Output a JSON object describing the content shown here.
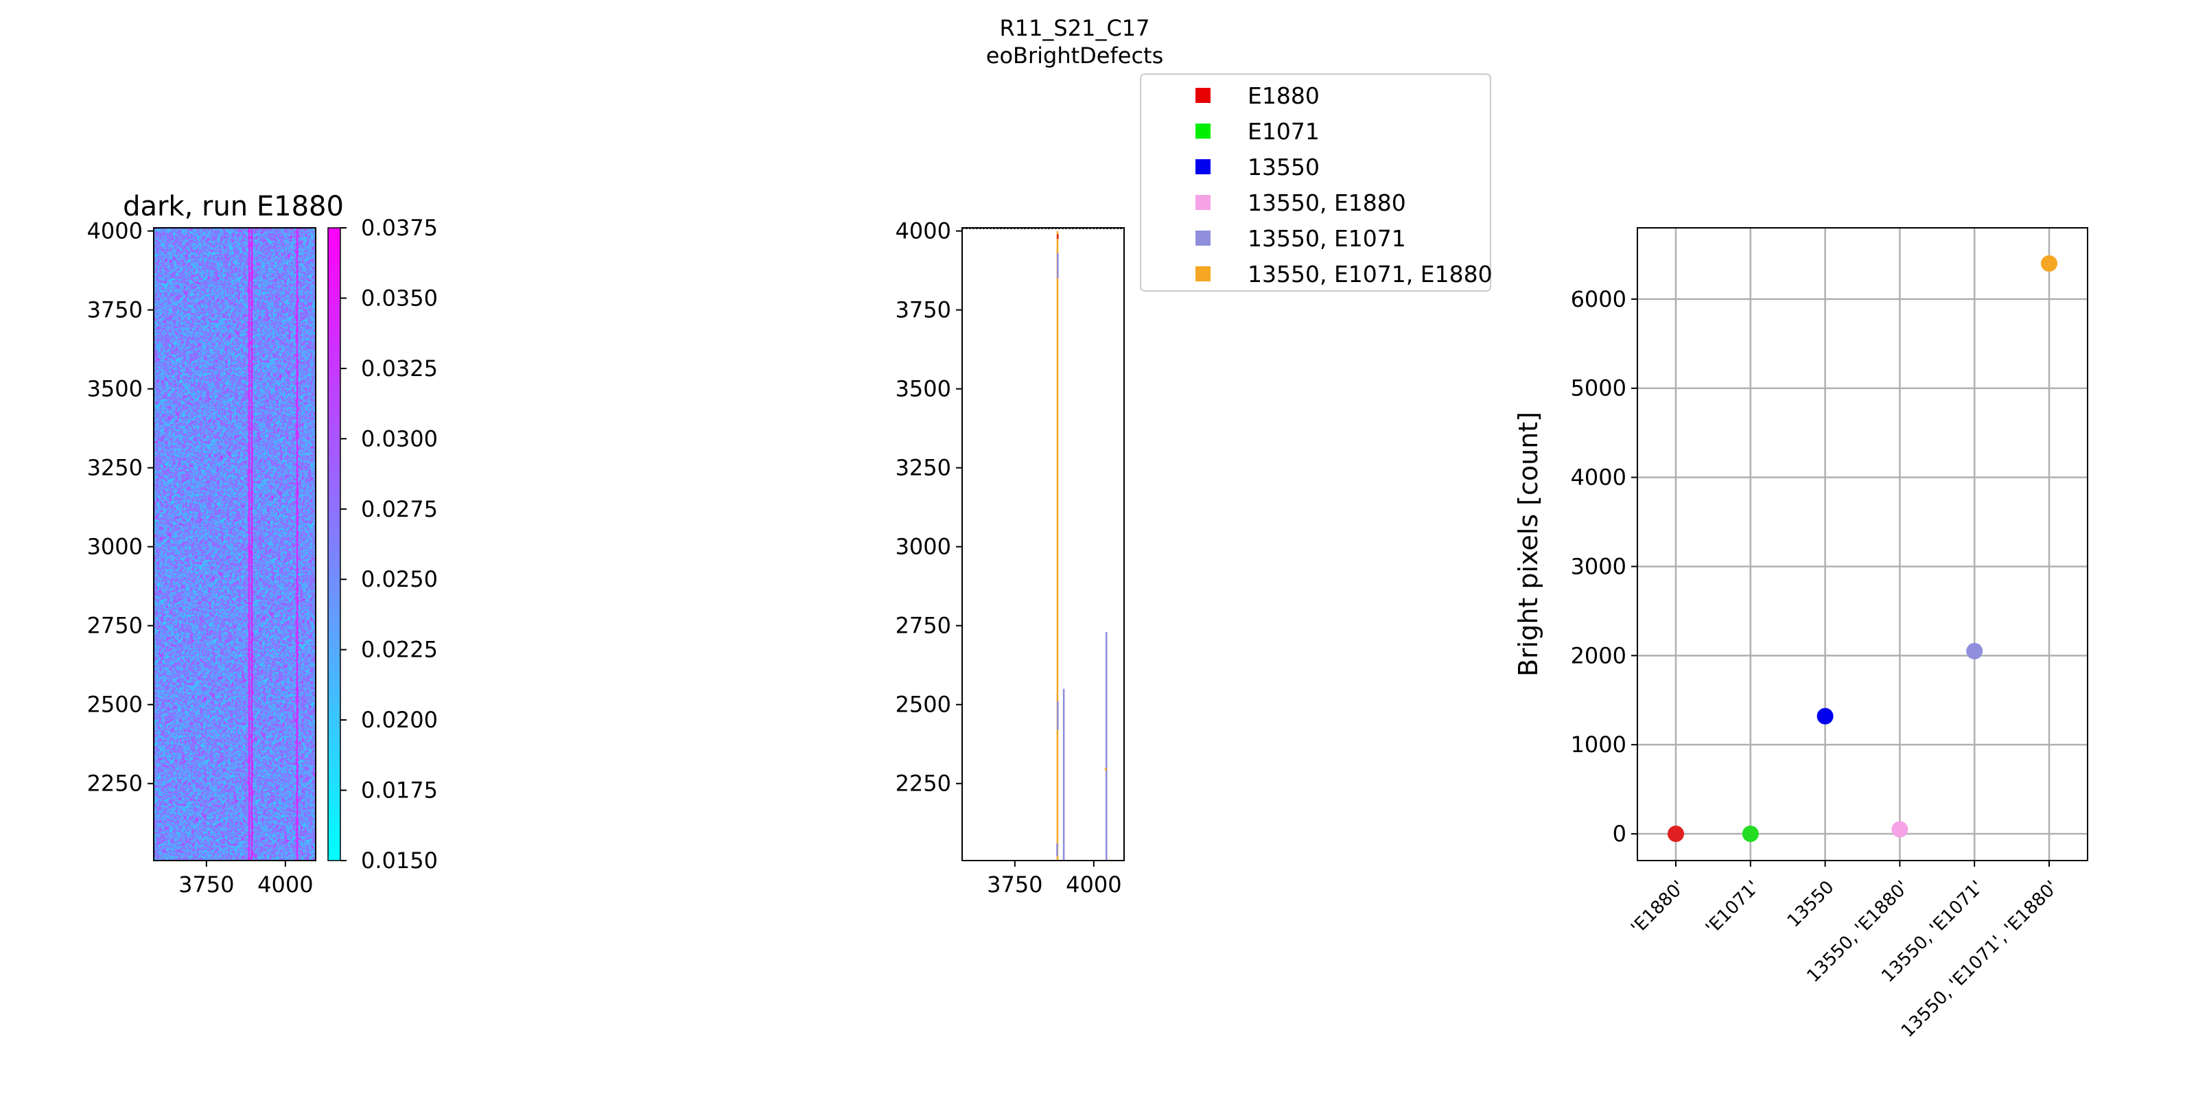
{
  "figure": {
    "suptitle_line1": "R11_S21_C17",
    "suptitle_line2": "eoBrightDefects"
  },
  "chart_data": [
    {
      "type": "heatmap",
      "title": "dark, run E1880",
      "xlabel": "",
      "ylabel": "",
      "x_ticks": [
        3750,
        4000
      ],
      "y_ticks": [
        2250,
        2500,
        2750,
        3000,
        3250,
        3500,
        3750,
        4000
      ],
      "xlim": [
        3583,
        4096
      ],
      "ylim": [
        2006,
        4010
      ],
      "colormap": [
        "#00ffff",
        "#ff00ff"
      ],
      "colorbar": {
        "min": 0.015,
        "max": 0.0375,
        "ticks": [
          "0.0150",
          "0.0175",
          "0.0200",
          "0.0225",
          "0.0250",
          "0.0275",
          "0.0300",
          "0.0325",
          "0.0350",
          "0.0375"
        ]
      },
      "bright_columns_x": [
        3883,
        3893,
        4036
      ]
    },
    {
      "type": "heatmap",
      "title": "",
      "xlabel": "",
      "ylabel": "",
      "x_ticks": [
        3750,
        4000
      ],
      "y_ticks": [
        2250,
        2500,
        2750,
        3000,
        3250,
        3500,
        3750,
        4000
      ],
      "xlim": [
        3583,
        4096
      ],
      "ylim": [
        2006,
        4010
      ],
      "defect_segments": [
        {
          "x": 3885,
          "y1": 2006,
          "y2": 4000,
          "color": "#f5a623"
        },
        {
          "x": 3886,
          "y1": 3850,
          "y2": 3930,
          "color": "#8c8cdc"
        },
        {
          "x": 3886,
          "y1": 2420,
          "y2": 2510,
          "color": "#8c8cdc"
        },
        {
          "x": 3884,
          "y1": 2020,
          "y2": 2060,
          "color": "#8c8cdc"
        },
        {
          "x": 3905,
          "y1": 2006,
          "y2": 2550,
          "color": "#8c8cdc"
        },
        {
          "x": 4040,
          "y1": 2006,
          "y2": 2730,
          "color": "#8c8cdc"
        },
        {
          "x": 3886,
          "y1": 3975,
          "y2": 3990,
          "color": "#e02020"
        },
        {
          "x": 4038,
          "y1": 2290,
          "y2": 2300,
          "color": "#f5a623"
        }
      ],
      "legend": {
        "placement": "upper-right, outside",
        "entries": [
          {
            "label": "E1880",
            "color": "#e60000"
          },
          {
            "label": "E1071",
            "color": "#00ee00"
          },
          {
            "label": "13550",
            "color": "#0000ee"
          },
          {
            "label": "13550, E1880",
            "color": "#f5a2e6"
          },
          {
            "label": "13550, E1071",
            "color": "#8f8fdc"
          },
          {
            "label": "13550, E1071, E1880",
            "color": "#f5a623"
          }
        ]
      }
    },
    {
      "type": "scatter",
      "title": "",
      "xlabel": "",
      "ylabel": "Bright pixels [count]",
      "categories": [
        "'E1880'",
        "'E1071'",
        "13550",
        "13550, 'E1880'",
        "13550, 'E1071'",
        "13550, 'E1071', 'E1880'"
      ],
      "values": [
        0,
        0,
        1320,
        50,
        2050,
        6400
      ],
      "colors": [
        "#e02020",
        "#22dd22",
        "#0000ee",
        "#f5a2e6",
        "#8f8fdc",
        "#f5a623"
      ],
      "ylim": [
        -300,
        6800
      ],
      "y_ticks": [
        0,
        1000,
        2000,
        3000,
        4000,
        5000,
        6000
      ],
      "grid": true
    }
  ]
}
